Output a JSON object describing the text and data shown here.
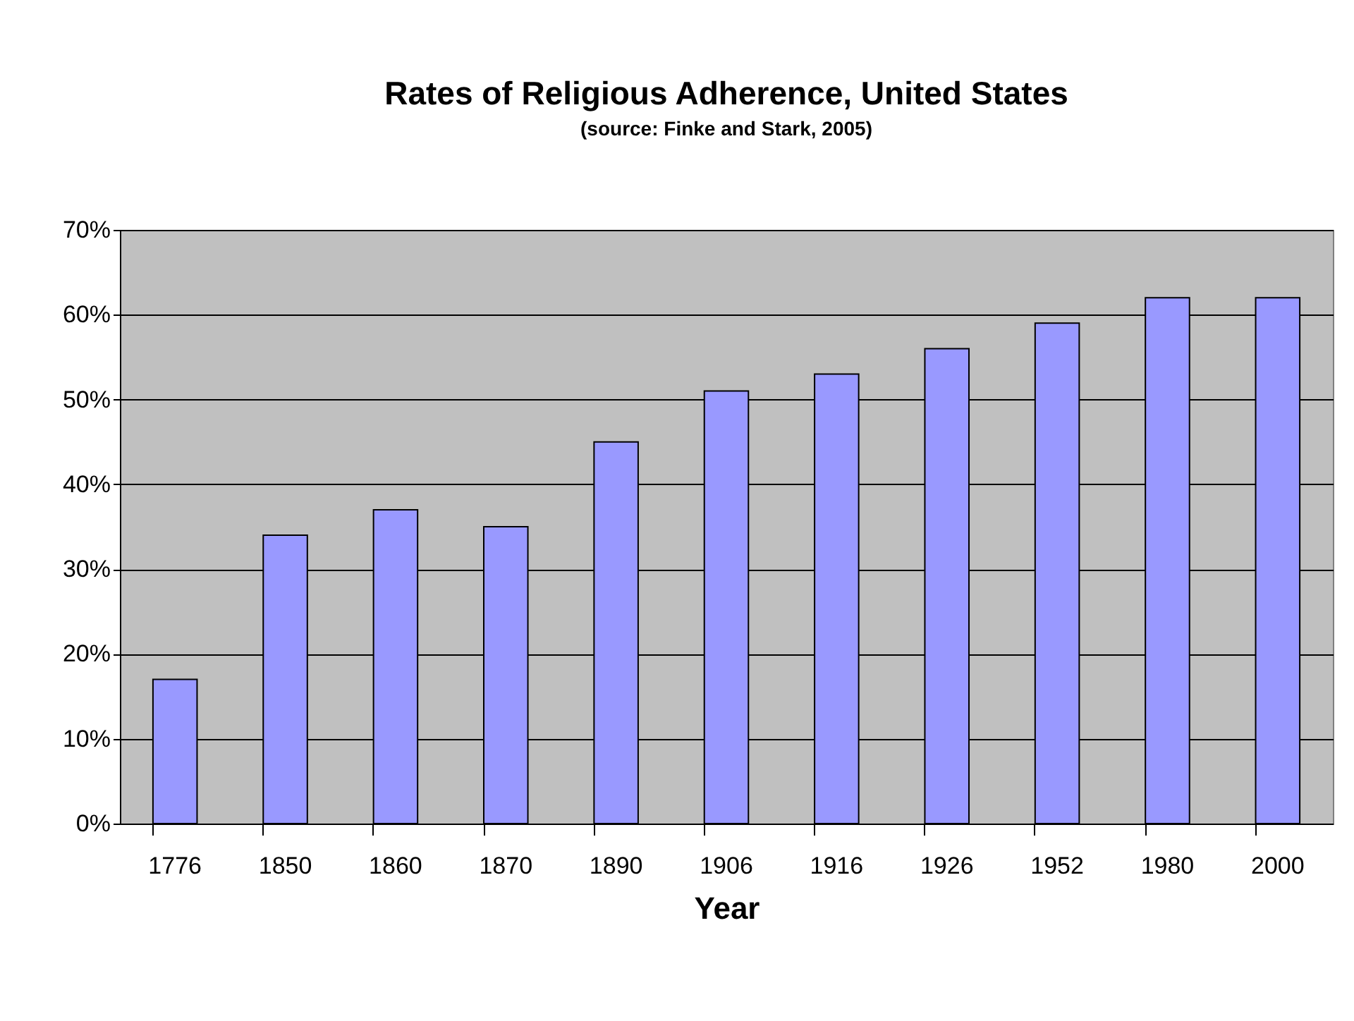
{
  "chart_data": {
    "type": "bar",
    "title": "Rates of Religious Adherence, United States",
    "subtitle": "(source: Finke and Stark, 2005)",
    "xlabel": "Year",
    "categories": [
      "1776",
      "1850",
      "1860",
      "1870",
      "1890",
      "1906",
      "1916",
      "1926",
      "1952",
      "1980",
      "2000"
    ],
    "values": [
      17,
      34,
      37,
      35,
      45,
      51,
      53,
      56,
      59,
      62,
      62
    ],
    "color": "#9999ff",
    "ylim": [
      0,
      70
    ],
    "yticks": [
      {
        "value": 0,
        "label": "0%"
      },
      {
        "value": 10,
        "label": "10%"
      },
      {
        "value": 20,
        "label": "20%"
      },
      {
        "value": 30,
        "label": "30%"
      },
      {
        "value": 40,
        "label": "40%"
      },
      {
        "value": 50,
        "label": "50%"
      },
      {
        "value": 60,
        "label": "60%"
      },
      {
        "value": 70,
        "label": "70%"
      }
    ],
    "grid": "y"
  }
}
